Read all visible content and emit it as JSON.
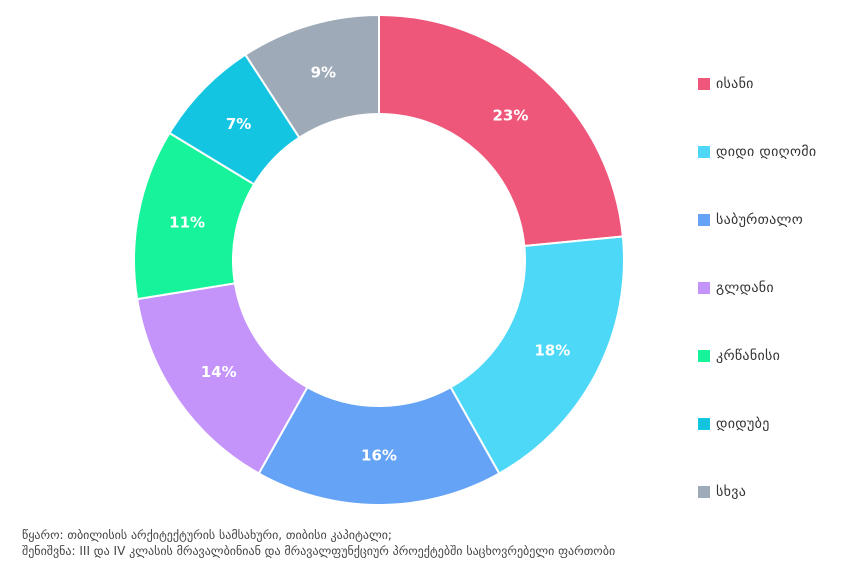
{
  "chart_data": {
    "type": "pie",
    "donut": true,
    "categories": [
      "ისანი",
      "დიდი დიღომი",
      "საბურთალო",
      "გლდანი",
      "კრწანისი",
      "დიდუბე",
      "სხვა"
    ],
    "values": [
      23,
      18,
      16,
      14,
      11,
      7,
      9
    ],
    "value_labels": [
      "23%",
      "18%",
      "16%",
      "14%",
      "11%",
      "7%",
      "9%"
    ],
    "colors": [
      "#ef577a",
      "#4ed8f7",
      "#64a3f5",
      "#c494fb",
      "#17f39b",
      "#13c5e1",
      "#9eaab8"
    ],
    "legend": "right"
  },
  "footnote": {
    "source": "წყარო: თბილისის არქიტექტურის სამსახური, თიბისი კაპიტალი;",
    "note": "შენიშვნა: III და IV კლასის მრავალბინიან და მრავალფუნქციურ პროექტებში საცხოვრებელი ფართობი"
  }
}
